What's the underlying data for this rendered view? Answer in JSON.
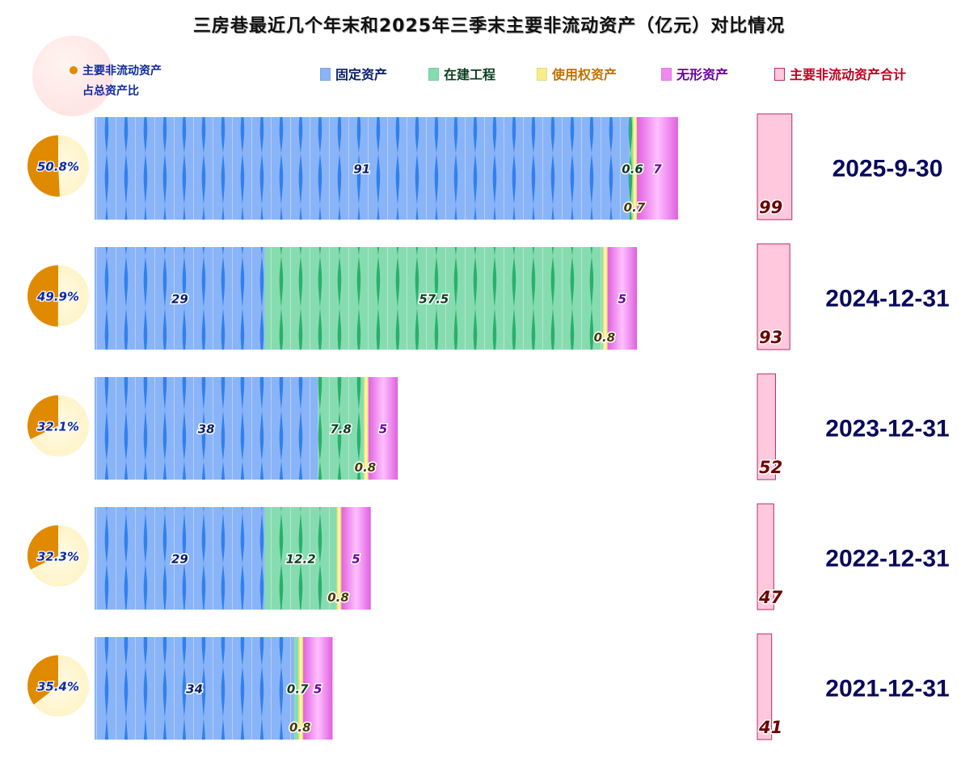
{
  "title": "三房巷最近几个年末和2025年三季末主要非流动资产（亿元）对比情况",
  "legend": {
    "pie_label_line1": "主要非流动资产",
    "pie_label_line2": "占总资产比",
    "items": [
      {
        "label": "固定资产",
        "color": "#8ab4f8",
        "text_color": "#0a1f6b"
      },
      {
        "label": "在建工程",
        "color": "#86dcb0",
        "text_color": "#0a3d1f"
      },
      {
        "label": "使用权资产",
        "color": "#f6ee8a",
        "text_color": "#c07000"
      },
      {
        "label": "无形资产",
        "color": "#f08af0",
        "text_color": "#6a00a0"
      },
      {
        "label": "主要非流动资产合计",
        "color": "#ffc8dc",
        "text_color": "#c00020"
      }
    ]
  },
  "chart_data": {
    "type": "bar",
    "orientation": "horizontal",
    "stacked": true,
    "categories": [
      "2025-9-30",
      "2024-12-31",
      "2023-12-31",
      "2022-12-31",
      "2021-12-31"
    ],
    "series": [
      {
        "name": "固定资产",
        "values": [
          91,
          29,
          38,
          29,
          34
        ],
        "labels": [
          "91",
          "29",
          "38",
          "29",
          "34"
        ]
      },
      {
        "name": "在建工程",
        "values": [
          0.6,
          57.5,
          7.8,
          12.2,
          0.7
        ],
        "labels": [
          "0.6",
          "57.5",
          "7.8",
          "12.2",
          "0.7"
        ]
      },
      {
        "name": "使用权资产",
        "values": [
          0.7,
          0.8,
          0.8,
          0.8,
          0.8
        ],
        "labels": [
          "0.7",
          "0.8",
          "0.8",
          "0.8",
          "0.8"
        ]
      },
      {
        "name": "无形资产",
        "values": [
          7,
          5,
          5,
          5,
          5
        ],
        "labels": [
          "7",
          "5",
          "5",
          "5",
          "5"
        ]
      }
    ],
    "totals": {
      "name": "主要非流动资产合计",
      "values": [
        99,
        93,
        52,
        47,
        41
      ],
      "labels": [
        "99",
        "93",
        "52",
        "47",
        "41"
      ]
    },
    "share_of_total_assets": {
      "name": "主要非流动资产占总资产比",
      "values": [
        50.8,
        49.9,
        32.1,
        32.3,
        35.4
      ],
      "labels": [
        "50.8%",
        "49.9%",
        "32.1%",
        "32.3%",
        "35.4%"
      ]
    },
    "colors": {
      "fixed": "#8ab4f8",
      "fixed_dark": "#1a73e8",
      "cip": "#86dcb0",
      "cip_dark": "#12a55a",
      "rou": "#f6ee8a",
      "intangible": "#f08af0",
      "total": "#ffc8dc",
      "total_border": "#b0306a",
      "pie": "#e08a00",
      "pie_light": "#fff3c8"
    },
    "grid": false,
    "legend_position": "top"
  }
}
